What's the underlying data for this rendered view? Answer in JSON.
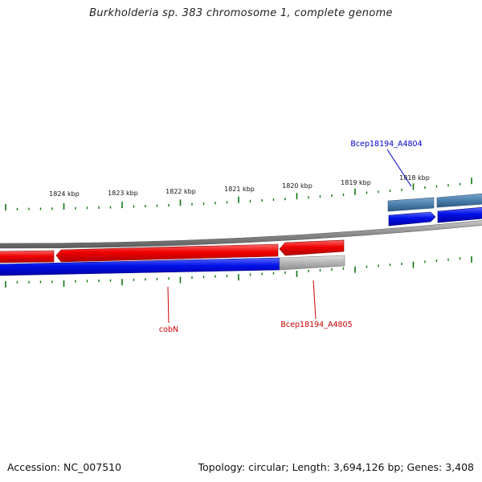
{
  "title": "Burkholderia sp. 383 chromosome 1, complete genome",
  "footer": {
    "accession": "Accession: NC_007510",
    "summary": "Topology: circular; Length: 3,694,126 bp; Genes: 3,408"
  },
  "ticks": [
    "1824 kbp",
    "1823 kbp",
    "1822 kbp",
    "1821 kbp",
    "1820 kbp",
    "1819 kbp",
    "1818 kbp"
  ],
  "genes": [
    {
      "name": "cobN",
      "color": "#cc0000"
    },
    {
      "name": "Bcep18194_A4805",
      "color": "#cc0000"
    },
    {
      "name": "Bcep18194_A4804",
      "color": "#0000cc"
    }
  ],
  "colors": {
    "reverse_strand": "#ee1111",
    "forward_strand": "#1111dd",
    "rna_feature": "#4a7fad",
    "backbone": "#888888",
    "ticks": "#117711",
    "pseudo_feature": "#b0b0b0"
  }
}
